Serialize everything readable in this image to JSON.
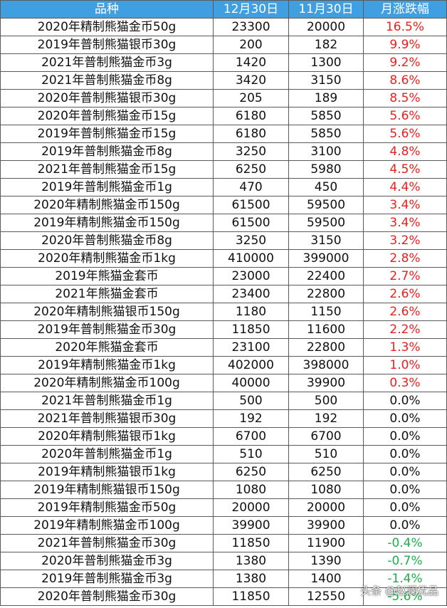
{
  "table": {
    "headers": [
      "品种",
      "12月30日",
      "11月30日",
      "月涨跌幅"
    ],
    "rows": [
      {
        "name": "2020年精制熊猫金币50g",
        "dec30": "23300",
        "nov30": "20000",
        "change": "16.5%",
        "trend": "up"
      },
      {
        "name": "2019年普制熊猫银币30g",
        "dec30": "200",
        "nov30": "182",
        "change": "9.9%",
        "trend": "up"
      },
      {
        "name": "2021年普制熊猫金币3g",
        "dec30": "1420",
        "nov30": "1300",
        "change": "9.2%",
        "trend": "up"
      },
      {
        "name": "2021年普制熊猫金币8g",
        "dec30": "3420",
        "nov30": "3150",
        "change": "8.6%",
        "trend": "up"
      },
      {
        "name": "2020年普制熊猫银币30g",
        "dec30": "205",
        "nov30": "189",
        "change": "8.5%",
        "trend": "up"
      },
      {
        "name": "2020年普制熊猫金币15g",
        "dec30": "6180",
        "nov30": "5850",
        "change": "5.6%",
        "trend": "up"
      },
      {
        "name": "2019年普制熊猫金币15g",
        "dec30": "6180",
        "nov30": "5850",
        "change": "5.6%",
        "trend": "up"
      },
      {
        "name": "2019年普制熊猫金币8g",
        "dec30": "3250",
        "nov30": "3100",
        "change": "4.8%",
        "trend": "up"
      },
      {
        "name": "2021年普制熊猫金币15g",
        "dec30": "6250",
        "nov30": "5980",
        "change": "4.5%",
        "trend": "up"
      },
      {
        "name": "2019年普制熊猫金币1g",
        "dec30": "470",
        "nov30": "450",
        "change": "4.4%",
        "trend": "up"
      },
      {
        "name": "2020年精制熊猫金币150g",
        "dec30": "61500",
        "nov30": "59500",
        "change": "3.4%",
        "trend": "up"
      },
      {
        "name": "2019年精制熊猫金币150g",
        "dec30": "61500",
        "nov30": "59500",
        "change": "3.4%",
        "trend": "up"
      },
      {
        "name": "2020年普制熊猫金币8g",
        "dec30": "3250",
        "nov30": "3150",
        "change": "3.2%",
        "trend": "up"
      },
      {
        "name": "2020年精制熊猫金币1kg",
        "dec30": "410000",
        "nov30": "399000",
        "change": "2.8%",
        "trend": "up"
      },
      {
        "name": "2019年熊猫金套币",
        "dec30": "23000",
        "nov30": "22400",
        "change": "2.7%",
        "trend": "up"
      },
      {
        "name": "2021年熊猫金套币",
        "dec30": "23400",
        "nov30": "22800",
        "change": "2.6%",
        "trend": "up"
      },
      {
        "name": "2020年精制熊猫银币150g",
        "dec30": "1180",
        "nov30": "1150",
        "change": "2.6%",
        "trend": "up"
      },
      {
        "name": "2019年普制熊猫金币30g",
        "dec30": "11850",
        "nov30": "11600",
        "change": "2.2%",
        "trend": "up"
      },
      {
        "name": "2020年熊猫金套币",
        "dec30": "23100",
        "nov30": "22800",
        "change": "1.3%",
        "trend": "up"
      },
      {
        "name": "2019年精制熊猫金币1kg",
        "dec30": "402000",
        "nov30": "398000",
        "change": "1.0%",
        "trend": "up"
      },
      {
        "name": "2020年精制熊猫金币100g",
        "dec30": "40000",
        "nov30": "39900",
        "change": "0.3%",
        "trend": "up"
      },
      {
        "name": "2021年普制熊猫金币1g",
        "dec30": "500",
        "nov30": "500",
        "change": "0.0%",
        "trend": "flat"
      },
      {
        "name": "2021年普制熊猫银币30g",
        "dec30": "192",
        "nov30": "192",
        "change": "0.0%",
        "trend": "flat"
      },
      {
        "name": "2020年精制熊猫银币1kg",
        "dec30": "6700",
        "nov30": "6700",
        "change": "0.0%",
        "trend": "flat"
      },
      {
        "name": "2020年普制熊猫金币1g",
        "dec30": "510",
        "nov30": "510",
        "change": "0.0%",
        "trend": "flat"
      },
      {
        "name": "2019年精制熊猫银币1kg",
        "dec30": "6250",
        "nov30": "6250",
        "change": "0.0%",
        "trend": "flat"
      },
      {
        "name": "2019年精制熊猫银币150g",
        "dec30": "1080",
        "nov30": "1080",
        "change": "0.0%",
        "trend": "flat"
      },
      {
        "name": "2019年精制熊猫金币50g",
        "dec30": "20000",
        "nov30": "20000",
        "change": "0.0%",
        "trend": "flat"
      },
      {
        "name": "2019年精制熊猫金币100g",
        "dec30": "39900",
        "nov30": "39900",
        "change": "0.0%",
        "trend": "flat"
      },
      {
        "name": "2021年普制熊猫金币30g",
        "dec30": "11850",
        "nov30": "11900",
        "change": "-0.4%",
        "trend": "down"
      },
      {
        "name": "2020年普制熊猫金币3g",
        "dec30": "1380",
        "nov30": "1390",
        "change": "-0.7%",
        "trend": "down"
      },
      {
        "name": "2019年普制熊猫金币3g",
        "dec30": "1380",
        "nov30": "1400",
        "change": "-1.4%",
        "trend": "down"
      },
      {
        "name": "2020年普制熊猫金币30g",
        "dec30": "11850",
        "nov30": "12550",
        "change": "-5.6%",
        "trend": "down"
      }
    ]
  },
  "colors": {
    "header_bg": "#3f9fe0",
    "up": "#e8201e",
    "down": "#18b24a"
  },
  "watermark": "头条 @赵澜优品"
}
